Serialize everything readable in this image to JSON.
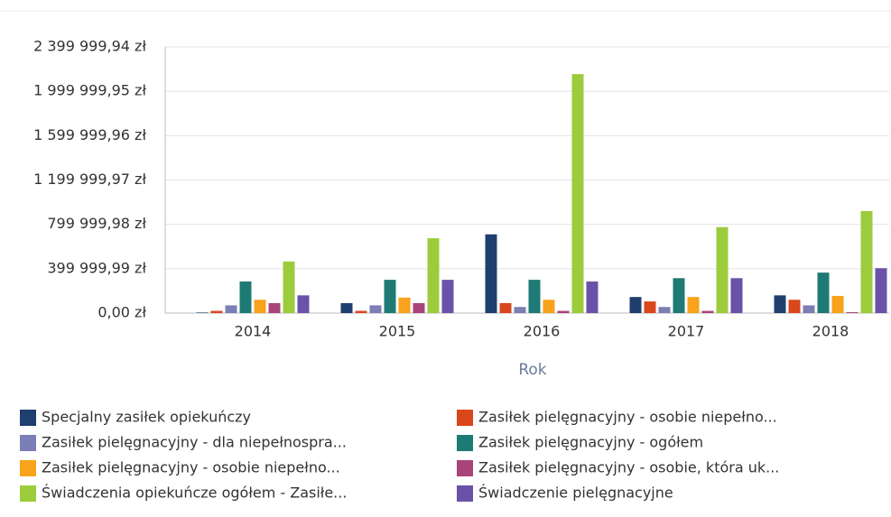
{
  "chart_data": {
    "type": "bar",
    "x_label": "Rok",
    "categories": [
      "2014",
      "2015",
      "2016",
      "2017",
      "2018"
    ],
    "ylim": [
      0,
      2399999.94
    ],
    "yticks": [
      {
        "value": 0,
        "label": "0,00 zł"
      },
      {
        "value": 399999.99,
        "label": "399 999,99 zł"
      },
      {
        "value": 799999.98,
        "label": "799 999,98 zł"
      },
      {
        "value": 1199999.97,
        "label": "1 199 999,97 zł"
      },
      {
        "value": 1599999.96,
        "label": "1 599 999,96 zł"
      },
      {
        "value": 1999999.95,
        "label": "1 999 999,95 zł"
      },
      {
        "value": 2399999.94,
        "label": "2 399 999,94 zł"
      }
    ],
    "grid": true,
    "series": [
      {
        "name": "Specjalny zasiłek opiekuńczy",
        "color": "#1f3f6e",
        "values": [
          5000,
          90000,
          710000,
          145000,
          160000
        ]
      },
      {
        "name": "Zasiłek pielęgnacyjny -  osobie niepełno...",
        "color": "#d9471c",
        "values": [
          20000,
          20000,
          90000,
          105000,
          120000
        ]
      },
      {
        "name": "Zasiłek pielęgnacyjny - dla niepełnospra...",
        "color": "#7b7fb5",
        "values": [
          70000,
          70000,
          55000,
          55000,
          70000
        ]
      },
      {
        "name": "Zasiłek pielęgnacyjny - ogółem",
        "color": "#1e7a74",
        "values": [
          285000,
          300000,
          300000,
          315000,
          365000
        ]
      },
      {
        "name": "Zasiłek pielęgnacyjny - osobie niepełno...",
        "color": "#f9a21b",
        "values": [
          120000,
          140000,
          120000,
          145000,
          155000
        ]
      },
      {
        "name": "Zasiłek pielęgnacyjny - osobie, która uk...",
        "color": "#a8447a",
        "values": [
          90000,
          90000,
          20000,
          20000,
          8000
        ]
      },
      {
        "name": "Świadczenia opiekuńcze ogółem - Zasiłe...",
        "color": "#9ccc3c",
        "values": [
          465000,
          675000,
          2155000,
          775000,
          920000
        ]
      },
      {
        "name": "Świadczenie pielęgnacyjne",
        "color": "#6b52a8",
        "values": [
          160000,
          300000,
          285000,
          315000,
          405000
        ]
      }
    ]
  }
}
